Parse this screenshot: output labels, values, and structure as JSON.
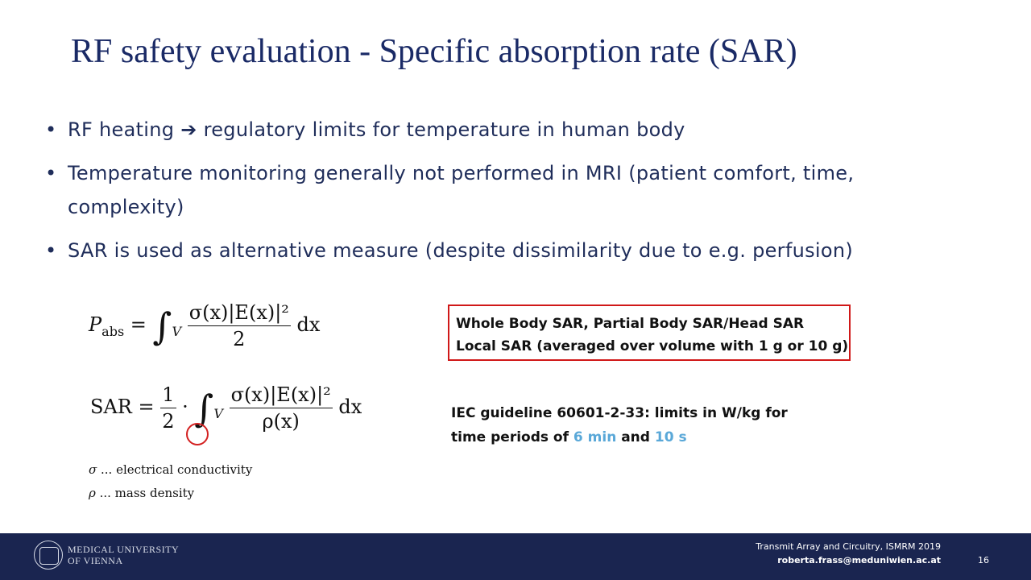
{
  "slide": {
    "title": "RF safety evaluation - Specific absorption rate (SAR)",
    "bullets": [
      {
        "before": "RF heating ",
        "arrow": "➔",
        "after": " regulatory limits for temperature in human body"
      },
      {
        "text": "Temperature monitoring generally not performed in MRI (patient comfort, time, complexity)"
      },
      {
        "text": "SAR is used as alternative measure (despite dissimilarity due to e.g. perfusion)"
      }
    ],
    "equations": {
      "pabs": {
        "lhs": "P",
        "lhs_sub": "abs",
        "eq": " = ",
        "integral_sub": "V",
        "numerator": "σ(x)|E(x)|²",
        "denominator": "2",
        "tail": " dx"
      },
      "sar": {
        "lhs": "SAR",
        "eq": " = ",
        "half_num": "1",
        "half_den": "2",
        "dot": " · ",
        "integral_sub": "V",
        "numerator": "σ(x)|E(x)|²",
        "denominator": "ρ(x)",
        "tail": " dx"
      }
    },
    "legend": [
      {
        "symbol": "σ",
        "text": " ... electrical conductivity"
      },
      {
        "symbol": "ρ",
        "text": " ... mass density"
      }
    ],
    "box": {
      "line1": "Whole Body SAR, Partial Body SAR/Head SAR",
      "line2": "Local SAR (averaged over volume with 1 g or 10 g)"
    },
    "iec": {
      "line1": "IEC guideline 60601-2-33: limits in W/kg for",
      "line2_a": "time periods of ",
      "highlight1": "6 min",
      "line2_b": " and ",
      "highlight2": "10 s"
    },
    "colors": {
      "title": "#1a2a66",
      "footer": "#1a2550",
      "box_border": "#d01818",
      "highlight": "#5aa8d8"
    }
  },
  "footer": {
    "logo_line1": "MEDICAL UNIVERSITY",
    "logo_line2": "OF VIENNA",
    "conference": "Transmit Array and Circuitry, ISMRM 2019",
    "email": "roberta.frass@meduniwien.ac.at",
    "page_number": "16"
  }
}
